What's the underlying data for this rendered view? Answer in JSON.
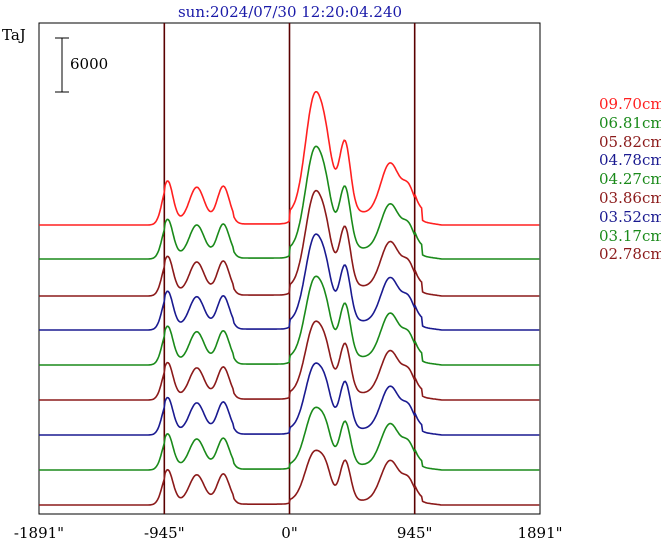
{
  "chart_data": {
    "type": "line",
    "title": "sun:2024/07/30 12:20:04.240",
    "ylabel": "TaJ",
    "scale_bar_label": "6000",
    "x_ticks": [
      -1891,
      -945,
      0,
      945,
      1891
    ],
    "x_tick_labels": [
      "-1891\"",
      "-945\"",
      "0\"",
      "945\"",
      "1891\""
    ],
    "xlim": [
      -1891,
      1891
    ],
    "vertical_lines": [
      -945,
      0,
      945
    ],
    "series": [
      {
        "name": "09.70cm",
        "color": "#ff2020",
        "baseline": 225,
        "amp": 1.0
      },
      {
        "name": "06.81cm",
        "color": "#1a8a1a",
        "baseline": 259,
        "amp": 0.9
      },
      {
        "name": "05.82cm",
        "color": "#8b1a1a",
        "baseline": 296,
        "amp": 0.9
      },
      {
        "name": "04.78cm",
        "color": "#1a1a90",
        "baseline": 330,
        "amp": 0.88
      },
      {
        "name": "04.27cm",
        "color": "#1a8a1a",
        "baseline": 365,
        "amp": 0.88
      },
      {
        "name": "03.86cm",
        "color": "#8b1a1a",
        "baseline": 400,
        "amp": 0.85
      },
      {
        "name": "03.52cm",
        "color": "#1a1a90",
        "baseline": 435,
        "amp": 0.85
      },
      {
        "name": "03.17cm",
        "color": "#1a8a1a",
        "baseline": 470,
        "amp": 0.82
      },
      {
        "name": "02.78cm",
        "color": "#8b1a1a",
        "baseline": 505,
        "amp": 0.8
      }
    ]
  }
}
